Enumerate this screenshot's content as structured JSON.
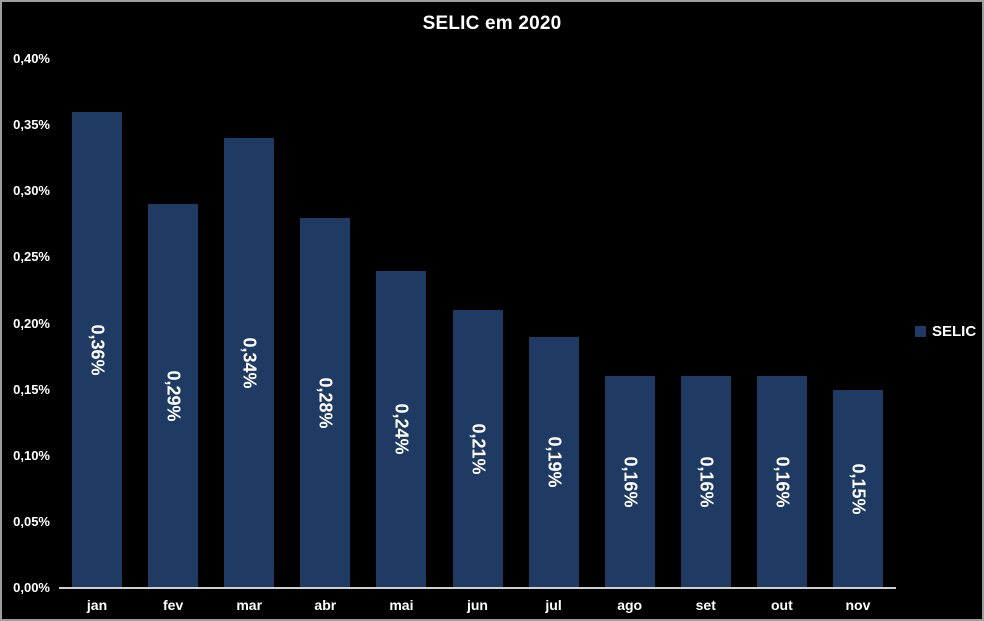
{
  "page": {
    "background_color": "#000000",
    "frame_border_color": "#9e9e9e",
    "text_color": "#ffffff"
  },
  "chart_data": {
    "type": "bar",
    "title": "SELIC em 2020",
    "xlabel": "",
    "ylabel": "",
    "categories": [
      "jan",
      "fev",
      "mar",
      "abr",
      "mai",
      "jun",
      "jul",
      "ago",
      "set",
      "out",
      "nov"
    ],
    "values": [
      0.36,
      0.29,
      0.34,
      0.28,
      0.24,
      0.21,
      0.19,
      0.16,
      0.16,
      0.16,
      0.15
    ],
    "value_labels": [
      "0,36%",
      "0,29%",
      "0,34%",
      "0,28%",
      "0,24%",
      "0,21%",
      "0,19%",
      "0,16%",
      "0,16%",
      "0,16%",
      "0,15%"
    ],
    "value_label_rotation_deg": 90,
    "ylim": [
      0,
      0.4
    ],
    "y_ticks": [
      {
        "value": 0.4,
        "label": "0,40%"
      },
      {
        "value": 0.35,
        "label": "0,35%"
      },
      {
        "value": 0.3,
        "label": "0,30%"
      },
      {
        "value": 0.25,
        "label": "0,25%"
      },
      {
        "value": 0.2,
        "label": "0,20%"
      },
      {
        "value": 0.15,
        "label": "0,15%"
      },
      {
        "value": 0.1,
        "label": "0,10%"
      },
      {
        "value": 0.05,
        "label": "0,05%"
      },
      {
        "value": 0.0,
        "label": "0,00%"
      }
    ],
    "grid": false,
    "bar_color": "#1f3a63",
    "axis_line_color": "#cfcfcf",
    "legend": {
      "label": "SELIC",
      "position": "right",
      "swatch_color": "#1f3a63"
    }
  }
}
